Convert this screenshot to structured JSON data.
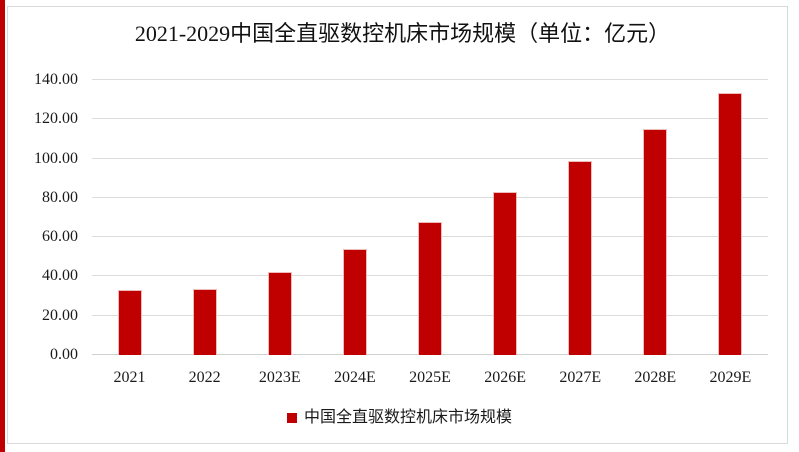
{
  "window": {
    "background_color": "#ffffff",
    "border_color": "#d9d9d9",
    "accent_stripe_color": "#c00000"
  },
  "chart_data": {
    "type": "bar",
    "title": "2021-2029中国全直驱数控机床市场规模（单位：亿元）",
    "unit": "亿元",
    "categories": [
      "2021",
      "2022",
      "2023E",
      "2024E",
      "2025E",
      "2026E",
      "2027E",
      "2028E",
      "2029E"
    ],
    "values": [
      33.2,
      33.6,
      42.3,
      54.0,
      67.8,
      82.9,
      99.0,
      115.0,
      133.6
    ],
    "series": [
      {
        "name": "中国全直驱数控机床市场规模",
        "values": [
          33.2,
          33.6,
          42.3,
          54.0,
          67.8,
          82.9,
          99.0,
          115.0,
          133.6
        ]
      }
    ],
    "legend_label": "中国全直驱数控机床市场规模",
    "legend_position": "bottom",
    "bar_color": "#c00000",
    "gridline_color": "#dcdcdc",
    "grid": true,
    "xlabel": "",
    "ylabel": "",
    "ylim": [
      0,
      140
    ],
    "ytick_interval": 20,
    "ytick_labels": [
      "0.00",
      "20.00",
      "40.00",
      "60.00",
      "80.00",
      "100.00",
      "120.00",
      "140.00"
    ]
  }
}
